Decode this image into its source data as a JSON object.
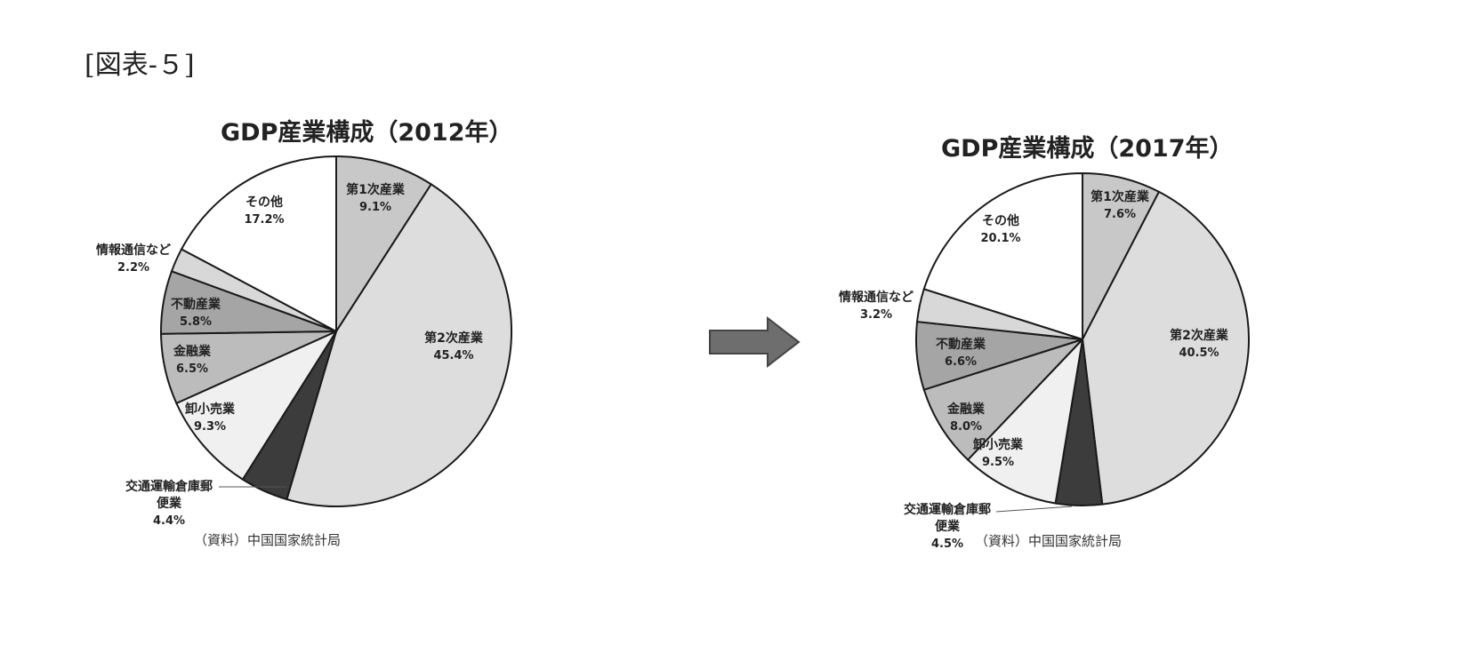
{
  "figure_label": "[図表-５]",
  "arrow_icon": "right-arrow-icon",
  "chart_data": [
    {
      "type": "pie",
      "title": "GDP産業構成（2012年）",
      "source": "（資料）中国国家統計局",
      "slices": [
        {
          "label": "第1次産業",
          "value": 9.1,
          "value_label": "9.1%",
          "color": "#c8c8c8"
        },
        {
          "label": "第2次産業",
          "value": 45.4,
          "value_label": "45.4%",
          "color": "#dddddd"
        },
        {
          "label": "交通運輸倉庫郵便業",
          "value": 4.4,
          "value_label": "4.4%",
          "color": "#3c3c3c"
        },
        {
          "label": "卸小売業",
          "value": 9.3,
          "value_label": "9.3%",
          "color": "#f0f0f0"
        },
        {
          "label": "金融業",
          "value": 6.5,
          "value_label": "6.5%",
          "color": "#bcbcbc"
        },
        {
          "label": "不動産業",
          "value": 5.8,
          "value_label": "5.8%",
          "color": "#a5a5a5"
        },
        {
          "label": "情報通信など",
          "value": 2.2,
          "value_label": "2.2%",
          "color": "#d8d8d8"
        },
        {
          "label": "その他",
          "value": 17.2,
          "value_label": "17.2%",
          "color": "#ffffff"
        }
      ]
    },
    {
      "type": "pie",
      "title": "GDP産業構成（2017年）",
      "source": "（資料）中国国家統計局",
      "slices": [
        {
          "label": "第1次産業",
          "value": 7.6,
          "value_label": "7.6%",
          "color": "#c8c8c8"
        },
        {
          "label": "第2次産業",
          "value": 40.5,
          "value_label": "40.5%",
          "color": "#dddddd"
        },
        {
          "label": "交通運輸倉庫郵便業",
          "value": 4.5,
          "value_label": "4.5%",
          "color": "#3c3c3c"
        },
        {
          "label": "卸小売業",
          "value": 9.5,
          "value_label": "9.5%",
          "color": "#f0f0f0"
        },
        {
          "label": "金融業",
          "value": 8.0,
          "value_label": "8.0%",
          "color": "#bcbcbc"
        },
        {
          "label": "不動産業",
          "value": 6.6,
          "value_label": "6.6%",
          "color": "#a5a5a5"
        },
        {
          "label": "情報通信など",
          "value": 3.2,
          "value_label": "3.2%",
          "color": "#d8d8d8"
        },
        {
          "label": "その他",
          "value": 20.1,
          "value_label": "20.1%",
          "color": "#ffffff"
        }
      ]
    }
  ]
}
